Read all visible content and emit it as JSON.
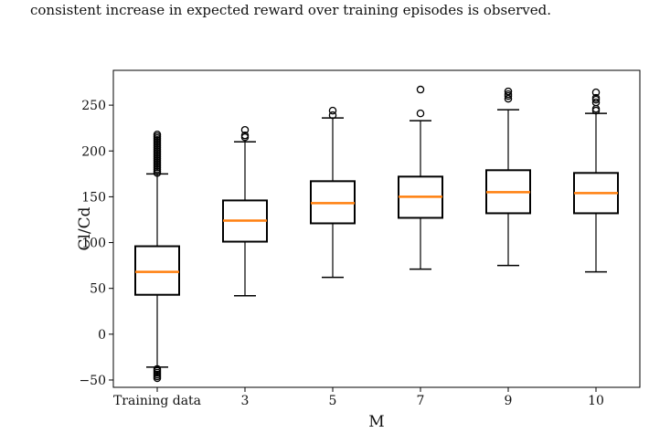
{
  "caption": "consistent increase in expected reward over training episodes is observed.",
  "chart_data": {
    "type": "box",
    "xlabel": "M",
    "ylabel": "Cl/Cd",
    "ylim": [
      -58,
      288
    ],
    "yticks": [
      -50,
      0,
      50,
      100,
      150,
      200,
      250
    ],
    "grid": false,
    "colors": {
      "box": "#000000",
      "median": "#ff7f0e"
    },
    "categories": [
      "Training data",
      "3",
      "5",
      "7",
      "9",
      "10"
    ],
    "boxes": [
      {
        "category": "Training data",
        "whisker_low": -36,
        "q1": 43,
        "median": 68,
        "q3": 96,
        "whisker_high": 175,
        "outliers": [
          176,
          178,
          180,
          182,
          184,
          186,
          188,
          190,
          192,
          194,
          196,
          198,
          200,
          202,
          204,
          206,
          208,
          210,
          212,
          214,
          216,
          218,
          -38,
          -40,
          -42,
          -44,
          -46,
          -48
        ]
      },
      {
        "category": "3",
        "whisker_low": 42,
        "q1": 101,
        "median": 124,
        "q3": 146,
        "whisker_high": 210,
        "outliers": [
          215,
          217,
          223
        ]
      },
      {
        "category": "5",
        "whisker_low": 62,
        "q1": 121,
        "median": 143,
        "q3": 167,
        "whisker_high": 236,
        "outliers": [
          239,
          244
        ]
      },
      {
        "category": "7",
        "whisker_low": 71,
        "q1": 127,
        "median": 150,
        "q3": 172,
        "whisker_high": 233,
        "outliers": [
          241,
          267
        ]
      },
      {
        "category": "9",
        "whisker_low": 75,
        "q1": 132,
        "median": 155,
        "q3": 179,
        "whisker_high": 245,
        "outliers": [
          257,
          260,
          262,
          265
        ]
      },
      {
        "category": "10",
        "whisker_low": 68,
        "q1": 132,
        "median": 154,
        "q3": 176,
        "whisker_high": 241,
        "outliers": [
          244,
          246,
          253,
          256,
          258,
          264
        ]
      }
    ]
  }
}
